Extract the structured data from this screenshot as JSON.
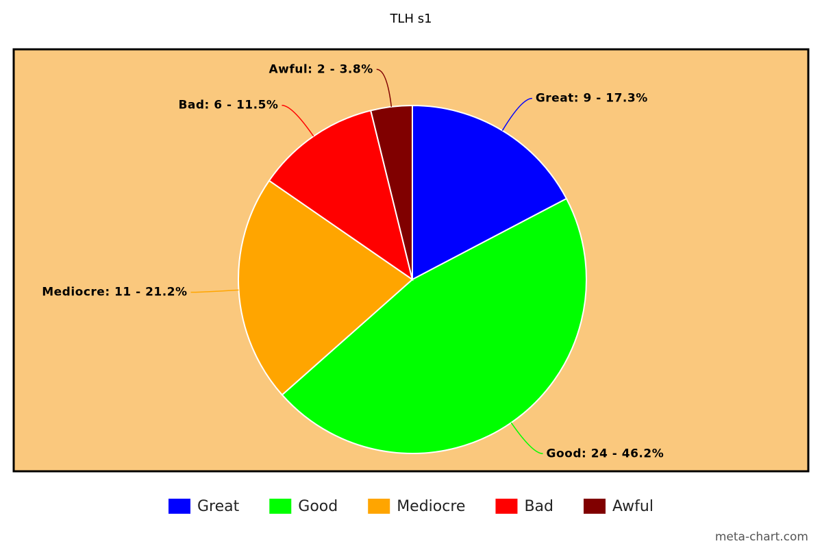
{
  "chart_data": {
    "type": "pie",
    "title": "TLH s1",
    "categories": [
      "Great",
      "Good",
      "Mediocre",
      "Bad",
      "Awful"
    ],
    "values": [
      9,
      24,
      11,
      6,
      2
    ],
    "value_labels": [
      "Great: 9 - 17.3%",
      "Good: 24 - 46.2%",
      "Mediocre: 11 - 21.2%",
      "Bad: 6 - 11.5%",
      "Awful: 2 - 3.8%"
    ],
    "colors": [
      "#0000ff",
      "#00ff00",
      "#ffa500",
      "#ff0000",
      "#800000"
    ],
    "background": "#fac87d",
    "legend": "bottom",
    "watermark": "meta-chart.com"
  }
}
